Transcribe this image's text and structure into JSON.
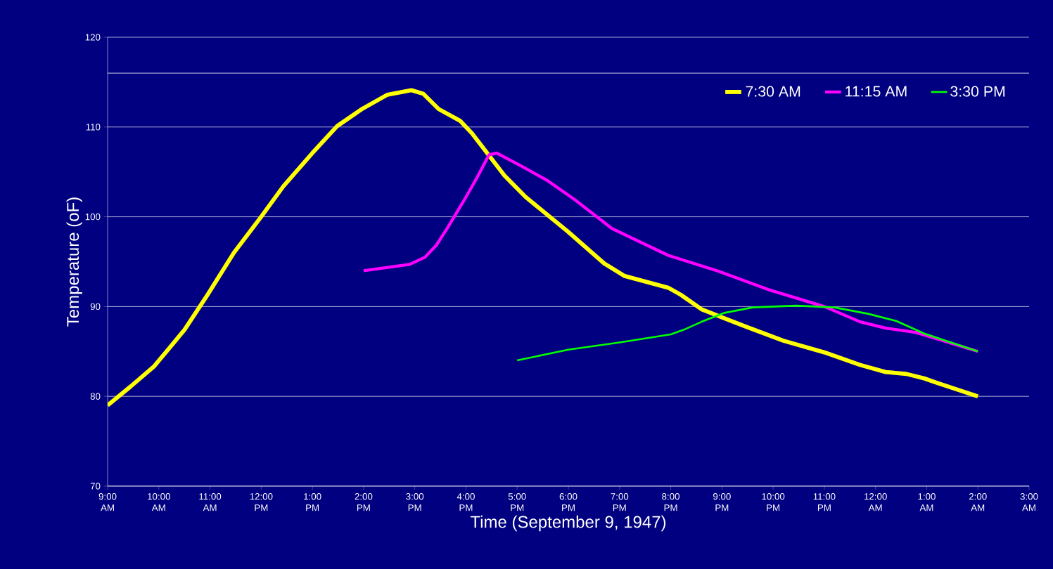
{
  "chart_data": {
    "type": "line",
    "xlabel": "Time (September 9, 1947)",
    "ylabel": "Temperature (oF)",
    "xlim": [
      "1947-09-09T09:00",
      "1947-09-10T03:00"
    ],
    "ylim": [
      70,
      120
    ],
    "xticks": [
      {
        "value": "1947-09-09T09:00",
        "label": "9:00 AM"
      },
      {
        "value": "1947-09-09T10:00",
        "label": "10:00 AM"
      },
      {
        "value": "1947-09-09T11:00",
        "label": "11:00 AM"
      },
      {
        "value": "1947-09-09T12:00",
        "label": "12:00 PM"
      },
      {
        "value": "1947-09-09T13:00",
        "label": "1:00 PM"
      },
      {
        "value": "1947-09-09T14:00",
        "label": "2:00 PM"
      },
      {
        "value": "1947-09-09T15:00",
        "label": "3:00 PM"
      },
      {
        "value": "1947-09-09T16:00",
        "label": "4:00 PM"
      },
      {
        "value": "1947-09-09T17:00",
        "label": "5:00 PM"
      },
      {
        "value": "1947-09-09T18:00",
        "label": "6:00 PM"
      },
      {
        "value": "1947-09-09T19:00",
        "label": "7:00 PM"
      },
      {
        "value": "1947-09-09T20:00",
        "label": "8:00 PM"
      },
      {
        "value": "1947-09-09T21:00",
        "label": "9:00 PM"
      },
      {
        "value": "1947-09-09T22:00",
        "label": "10:00 PM"
      },
      {
        "value": "1947-09-09T23:00",
        "label": "11:00 PM"
      },
      {
        "value": "1947-09-10T00:00",
        "label": "12:00 AM"
      },
      {
        "value": "1947-09-10T01:00",
        "label": "1:00 AM"
      },
      {
        "value": "1947-09-10T02:00",
        "label": "2:00 AM"
      },
      {
        "value": "1947-09-10T03:00",
        "label": "3:00 AM"
      }
    ],
    "yticks": [
      70,
      80,
      90,
      100,
      110,
      120
    ],
    "grid": "y",
    "legend": "top right",
    "ref_lines": [
      {
        "axis": "y",
        "value": 116,
        "color": "#ffffff"
      }
    ],
    "series": [
      {
        "name": "7:30 AM",
        "color": "#ffff00",
        "x": [
          "1947-09-09T09:00",
          "1947-09-09T09:27",
          "1947-09-09T09:54",
          "1947-09-09T10:09",
          "1947-09-09T10:30",
          "1947-09-09T10:57",
          "1947-09-09T11:28",
          "1947-09-09T12:00",
          "1947-09-09T12:26",
          "1947-09-09T13:00",
          "1947-09-09T13:29",
          "1947-09-09T13:58",
          "1947-09-09T14:28",
          "1947-09-09T14:56",
          "1947-09-09T15:10",
          "1947-09-09T15:28",
          "1947-09-09T15:53",
          "1947-09-09T16:07",
          "1947-09-09T16:20",
          "1947-09-09T16:45",
          "1947-09-09T17:10",
          "1947-09-09T18:00",
          "1947-09-09T18:42",
          "1947-09-09T19:06",
          "1947-09-09T19:57",
          "1947-09-09T20:12",
          "1947-09-09T20:36",
          "1947-09-09T21:00",
          "1947-09-09T21:27",
          "1947-09-09T22:12",
          "1947-09-09T23:00",
          "1947-09-09T23:42",
          "1947-09-10T00:12",
          "1947-09-10T00:36",
          "1947-09-10T00:57",
          "1947-09-10T01:12",
          "1947-09-10T02:00"
        ],
        "values": [
          79,
          81.1,
          83.3,
          85,
          87.4,
          91.3,
          96,
          100,
          103.4,
          107.1,
          110.1,
          112,
          113.6,
          114.1,
          113.7,
          112,
          110.7,
          109.3,
          107.7,
          104.6,
          102.2,
          98.3,
          94.8,
          93.4,
          92.1,
          91.3,
          89.7,
          88.8,
          87.8,
          86.2,
          84.9,
          83.5,
          82.7,
          82.5,
          82,
          81.5,
          80
        ]
      },
      {
        "name": "11:15 AM",
        "color": "#ff00ff",
        "x": [
          "1947-09-09T14:00",
          "1947-09-09T14:54",
          "1947-09-09T15:12",
          "1947-09-09T15:25",
          "1947-09-09T15:38",
          "1947-09-09T16:00",
          "1947-09-09T16:12",
          "1947-09-09T16:27",
          "1947-09-09T16:36",
          "1947-09-09T17:06",
          "1947-09-09T17:36",
          "1947-09-09T18:09",
          "1947-09-09T18:51",
          "1947-09-09T19:57",
          "1947-09-09T20:54",
          "1947-09-09T21:54",
          "1947-09-09T23:00",
          "1947-09-09T23:42",
          "1947-09-10T00:12",
          "1947-09-10T00:48",
          "1947-09-10T02:00"
        ],
        "values": [
          94,
          94.7,
          95.5,
          96.8,
          98.7,
          102.2,
          104.2,
          106.9,
          107.1,
          105.6,
          104,
          101.8,
          98.7,
          95.7,
          94,
          91.9,
          90,
          88.3,
          87.6,
          87.1,
          85
        ]
      },
      {
        "name": "3:30 PM",
        "color": "#00ff00",
        "x": [
          "1947-09-09T17:00",
          "1947-09-09T18:00",
          "1947-09-09T19:00",
          "1947-09-09T20:00",
          "1947-09-09T20:15",
          "1947-09-09T20:36",
          "1947-09-09T21:03",
          "1947-09-09T21:36",
          "1947-09-09T22:27",
          "1947-09-09T23:12",
          "1947-09-09T23:51",
          "1947-09-10T00:24",
          "1947-09-10T00:57",
          "1947-09-10T02:00"
        ],
        "values": [
          84,
          85.2,
          86,
          86.9,
          87.4,
          88.3,
          89.3,
          89.9,
          90.1,
          89.9,
          89.2,
          88.4,
          87,
          85
        ]
      }
    ]
  }
}
